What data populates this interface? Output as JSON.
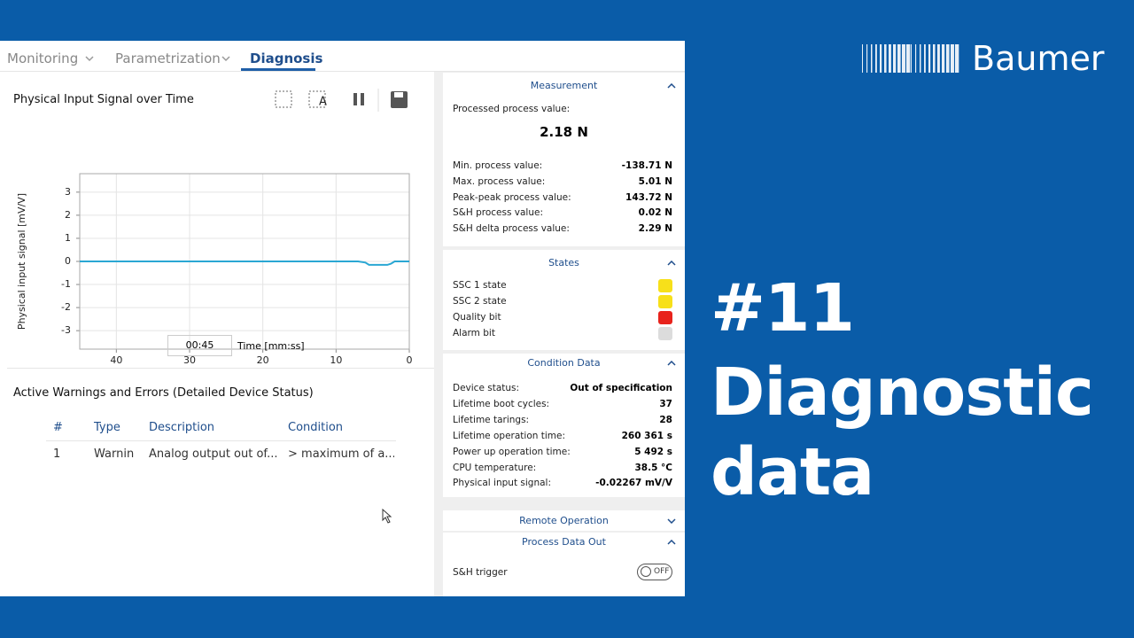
{
  "tabs": [
    "Monitoring",
    "Parametrization",
    "Diagnosis"
  ],
  "chart_data": {
    "type": "line",
    "title": "Physical Input Signal over Time",
    "ylabel": "Physical input signal [mV/V]",
    "xlabel": "Time [mm:ss]",
    "time_window": "00:45",
    "x": [
      45,
      7,
      6,
      5.5,
      3,
      2.5,
      2,
      0
    ],
    "values": [
      0,
      0,
      -0.05,
      -0.15,
      -0.15,
      -0.1,
      0,
      0
    ],
    "color": "#2aa7d3",
    "xlim": [
      45,
      0
    ],
    "xticks": [
      40,
      30,
      20,
      10,
      0
    ],
    "ylim": [
      -3.8,
      3.8
    ],
    "yticks": [
      3,
      2,
      1,
      0,
      -1,
      -2,
      -3
    ],
    "grid": true
  },
  "warnings": {
    "title": "Active Warnings and Errors (Detailed Device Status)",
    "columns": [
      "#",
      "Type",
      "Description",
      "Condition"
    ],
    "rows": [
      [
        "1",
        "Warning",
        "Analog output out of...",
        "> maximum of a..."
      ]
    ]
  },
  "panel": {
    "measurement": {
      "title": "Measurement",
      "main_label": "Processed process value:",
      "main_value": "2.18 N",
      "rows": [
        [
          "Min. process value:",
          "-138.71 N"
        ],
        [
          "Max. process value:",
          "5.01 N"
        ],
        [
          "Peak-peak process value:",
          "143.72 N"
        ],
        [
          "S&H process value:",
          "0.02 N"
        ],
        [
          "S&H delta process value:",
          "2.29 N"
        ]
      ]
    },
    "states": {
      "title": "States",
      "rows": [
        {
          "label": "SSC 1 state",
          "color": "#f7e01a"
        },
        {
          "label": "SSC 2 state",
          "color": "#f7e01a"
        },
        {
          "label": "Quality bit",
          "color": "#e8231c"
        },
        {
          "label": "Alarm bit",
          "color": "#dcdcdc"
        }
      ]
    },
    "condition": {
      "title": "Condition Data",
      "rows": [
        [
          "Device status:",
          "Out of specification"
        ],
        [
          "Lifetime boot cycles:",
          "37"
        ],
        [
          "Lifetime tarings:",
          "28"
        ],
        [
          "Lifetime operation time:",
          "260 361 s"
        ],
        [
          "Power up operation time:",
          "5 492 s"
        ],
        [
          "CPU temperature:",
          "38.5 °C"
        ],
        [
          "Physical input signal:",
          "-0.02267 mV/V"
        ]
      ]
    },
    "remote": {
      "title": "Remote Operation"
    },
    "process_out": {
      "title": "Process Data Out",
      "trigger_label": "S&H trigger",
      "trigger_state": "OFF"
    }
  },
  "brand": "Baumer",
  "headline": [
    "#11",
    "Diagnostic",
    "data"
  ]
}
